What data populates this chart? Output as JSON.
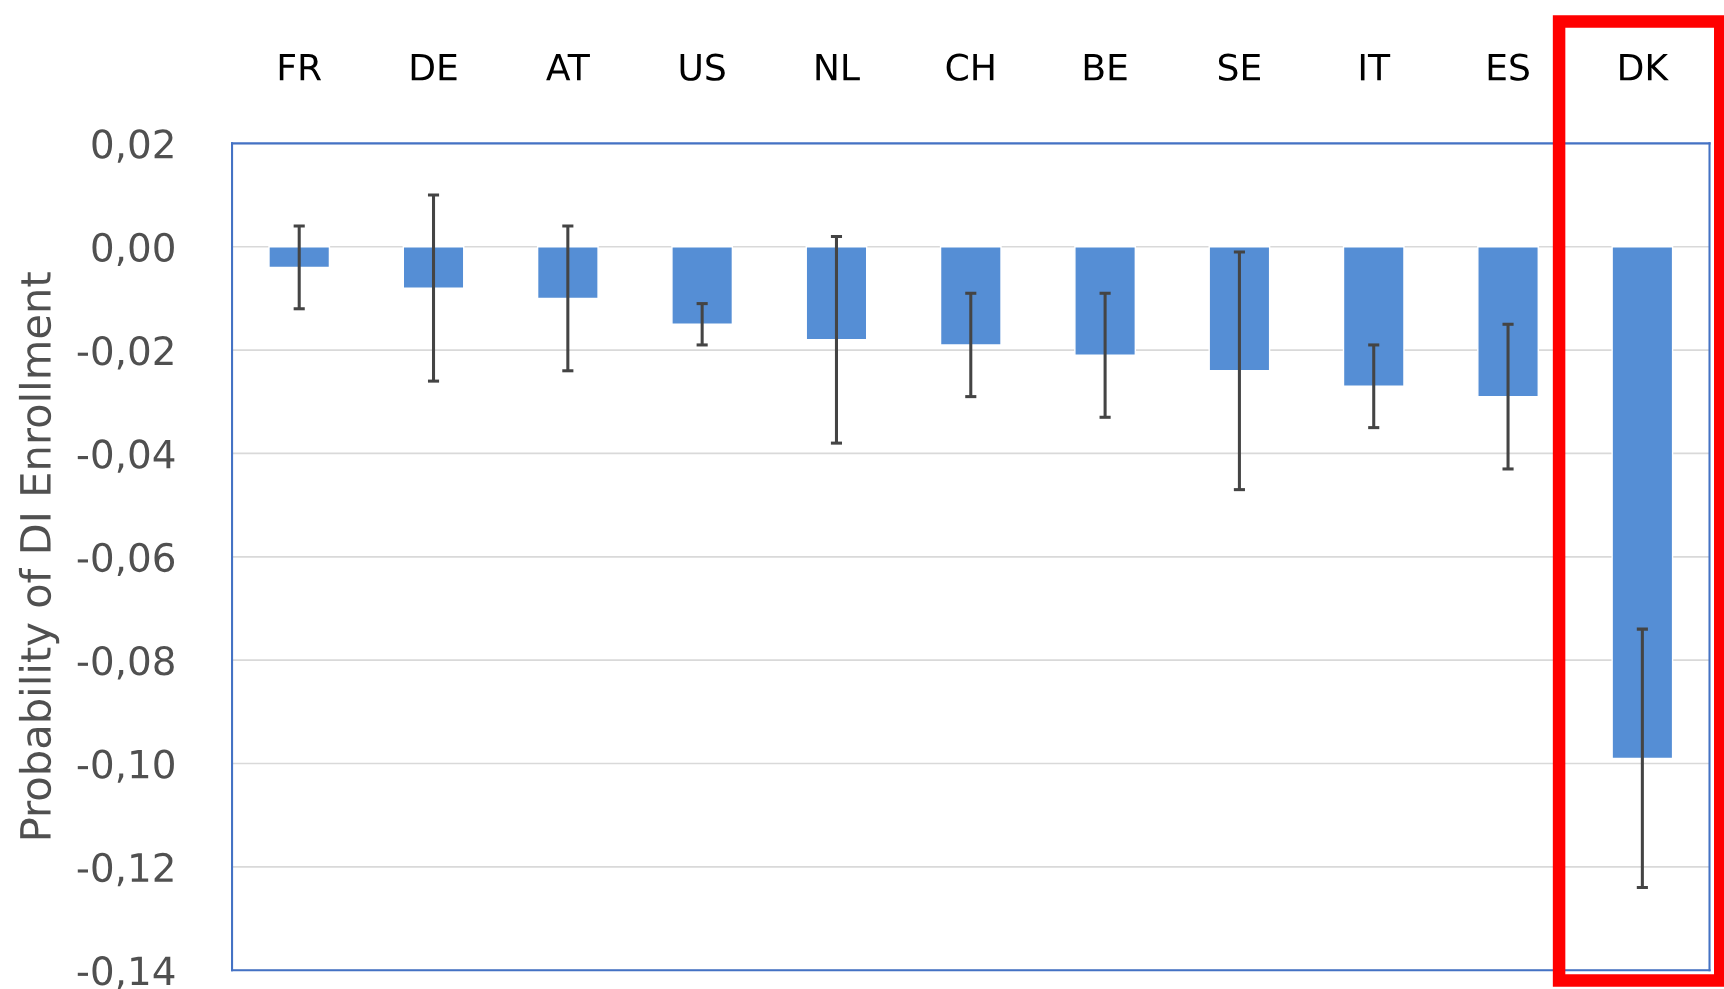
{
  "chart_data": {
    "type": "bar",
    "ylabel": "Probability of DI Enrollment",
    "categories": [
      "FR",
      "DE",
      "AT",
      "US",
      "NL",
      "CH",
      "BE",
      "SE",
      "IT",
      "ES",
      "DK"
    ],
    "values": [
      -0.004,
      -0.008,
      -0.01,
      -0.015,
      -0.018,
      -0.019,
      -0.021,
      -0.024,
      -0.027,
      -0.029,
      -0.099
    ],
    "errors": [
      [
        -0.012,
        0.004
      ],
      [
        -0.026,
        0.01
      ],
      [
        -0.024,
        0.004
      ],
      [
        -0.019,
        -0.011
      ],
      [
        -0.038,
        0.002
      ],
      [
        -0.029,
        -0.009
      ],
      [
        -0.033,
        -0.009
      ],
      [
        -0.047,
        -0.001
      ],
      [
        -0.035,
        -0.019
      ],
      [
        -0.043,
        -0.015
      ],
      [
        -0.124,
        -0.074
      ]
    ],
    "color": "#558ed5",
    "ylim": [
      -0.14,
      0.02
    ],
    "yticks": [
      {
        "value": -0.14,
        "label": "-0,14"
      },
      {
        "value": -0.12,
        "label": "-0,12"
      },
      {
        "value": -0.1,
        "label": "-0,10"
      },
      {
        "value": -0.08,
        "label": "-0,08"
      },
      {
        "value": -0.06,
        "label": "-0,06"
      },
      {
        "value": -0.04,
        "label": "-0,04"
      },
      {
        "value": -0.02,
        "label": "-0,02"
      },
      {
        "value": 0.0,
        "label": "0,00"
      },
      {
        "value": 0.02,
        "label": "0,02"
      }
    ],
    "grid": "y"
  }
}
